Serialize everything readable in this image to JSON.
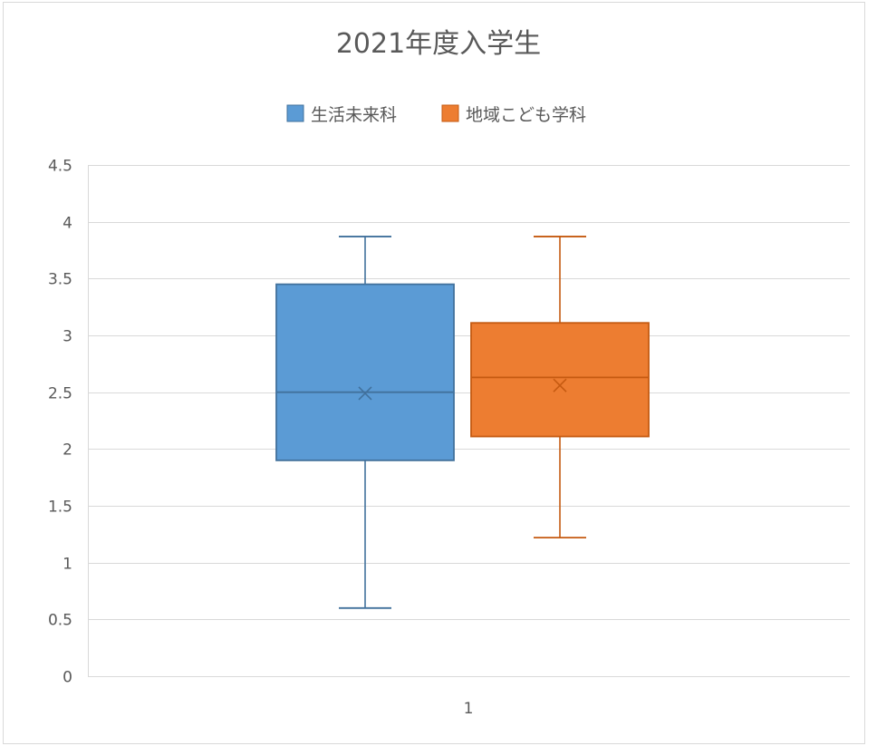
{
  "chart_data": {
    "type": "boxplot",
    "title": "2021年度入学生",
    "categories": [
      "1"
    ],
    "ylim": [
      0,
      4.5
    ],
    "yticks": [
      "0",
      "0.5",
      "1",
      "1.5",
      "2",
      "2.5",
      "3",
      "3.5",
      "4",
      "4.5"
    ],
    "grid": true,
    "legend_position": "top",
    "series": [
      {
        "name": "生活未来科",
        "color": "#5b9bd5",
        "edge_color": "#41719c",
        "min": 0.6,
        "q1": 1.9,
        "median": 2.5,
        "q3": 3.45,
        "max": 3.87,
        "mean": 2.49
      },
      {
        "name": "地域こども学科",
        "color": "#ed7d31",
        "edge_color": "#c55a11",
        "min": 1.22,
        "q1": 2.11,
        "median": 2.63,
        "q3": 3.11,
        "max": 3.87,
        "mean": 2.56
      }
    ]
  }
}
